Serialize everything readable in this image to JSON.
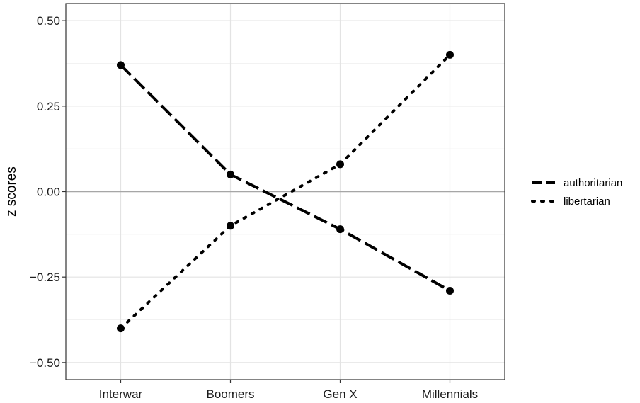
{
  "chart_data": {
    "type": "line",
    "title": "",
    "xlabel": "",
    "ylabel": "z scores",
    "categories": [
      "Interwar",
      "Boomers",
      "Gen X",
      "Millennials"
    ],
    "ylim": [
      -0.55,
      0.55
    ],
    "yticks": [
      -0.5,
      -0.25,
      0.0,
      0.25,
      0.5
    ],
    "ytick_labels": [
      "−0.50",
      "−0.25",
      "0.00",
      "0.25",
      "0.50"
    ],
    "grid": true,
    "reference_line_y": 0,
    "legend_position": "right",
    "series": [
      {
        "name": "authoritarian",
        "line_style": "dashed",
        "color": "#000000",
        "values": [
          0.37,
          0.05,
          -0.11,
          -0.29
        ]
      },
      {
        "name": "libertarian",
        "line_style": "dotted",
        "color": "#000000",
        "values": [
          -0.4,
          -0.1,
          0.08,
          0.4
        ]
      }
    ]
  }
}
